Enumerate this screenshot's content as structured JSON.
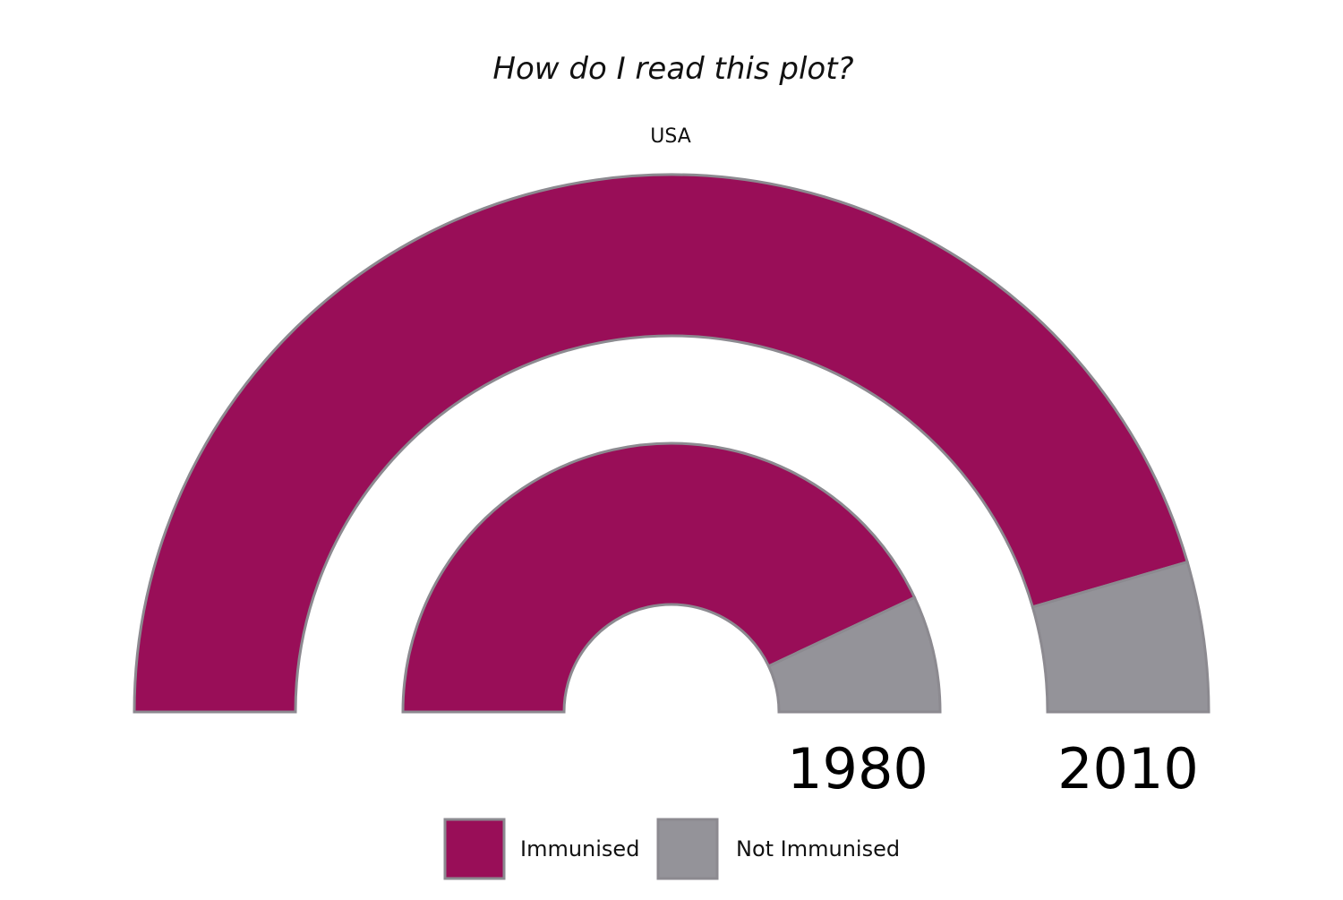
{
  "chart_data": {
    "type": "semi-donut",
    "title": "How do I read this plot?",
    "subtitle": "USA",
    "series": [
      {
        "label": "1980",
        "ring": "inner",
        "values": {
          "Immunised": 86,
          "Not Immunised": 14
        }
      },
      {
        "label": "2010",
        "ring": "outer",
        "values": {
          "Immunised": 91,
          "Not Immunised": 9
        }
      }
    ],
    "categories": [
      "Immunised",
      "Not Immunised"
    ],
    "colors": {
      "Immunised": "#990e58",
      "Not Immunised": "#949399",
      "outline": "#8c8a90"
    },
    "legend": {
      "placement": "bottom",
      "items": [
        {
          "label": "Immunised",
          "color": "#990e58"
        },
        {
          "label": "Not Immunised",
          "color": "#949399"
        }
      ]
    }
  }
}
